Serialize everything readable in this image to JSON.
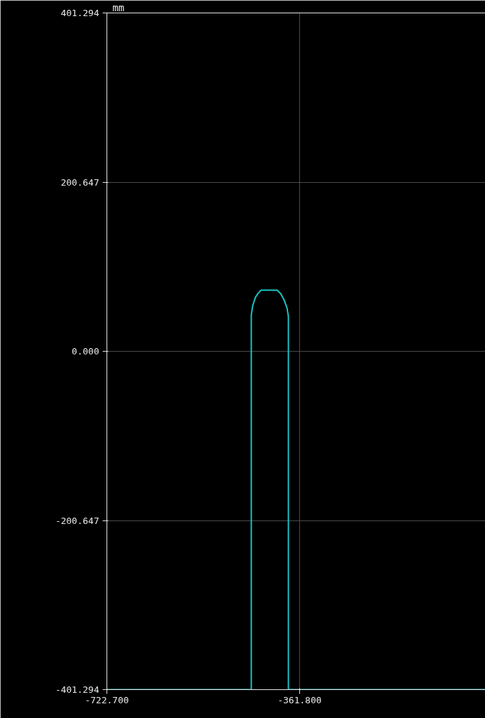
{
  "chart_data": {
    "type": "line",
    "ylabel": "mm",
    "x": [
      -722.7,
      -452.3,
      -452.3,
      -449.7,
      -444.5,
      -439.2,
      -434.0,
      -403.8,
      -397.2,
      -390.7,
      -385.4,
      -382.8,
      -382.8,
      -14.0
    ],
    "series": [
      {
        "color": "#19c3c3",
        "values": [
          -401.294,
          -401.294,
          43.0,
          54.0,
          64.1,
          69.1,
          72.5,
          72.5,
          68.3,
          60.7,
          51.4,
          41.3,
          -401.294,
          -401.294
        ]
      }
    ],
    "xlim": [
      -722.7,
      -14.0
    ],
    "ylim": [
      -401.294,
      401.294
    ],
    "xticks": [
      {
        "value": -722.7,
        "label": "-722.700"
      },
      {
        "value": -361.8,
        "label": "-361.800"
      }
    ],
    "yticks": [
      {
        "value": -401.294,
        "label": "-401.294"
      },
      {
        "value": -200.647,
        "label": "-200.647"
      },
      {
        "value": 0,
        "label": "0.000"
      },
      {
        "value": 200.647,
        "label": "200.647"
      },
      {
        "value": 401.294,
        "label": "401.294"
      }
    ],
    "grid": true,
    "marker": "none",
    "line_style": "solid"
  }
}
